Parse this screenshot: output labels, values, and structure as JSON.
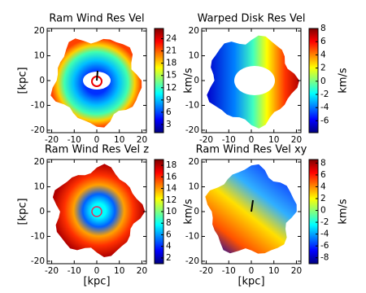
{
  "chart_data": [
    {
      "type": "heatmap",
      "title": "Ram Wind Res Vel",
      "ylabel": "[kpc]",
      "xlim": [
        -22,
        22
      ],
      "ylim": [
        -21,
        21
      ],
      "xticks": [
        -20,
        -10,
        0,
        10,
        20
      ],
      "yticks": [
        -20,
        -10,
        0,
        10,
        20
      ],
      "colorbar_label": "km/s",
      "clim": [
        1,
        26.5
      ],
      "cticks": [
        3,
        6,
        9,
        12,
        15,
        18,
        21,
        24
      ]
    },
    {
      "type": "heatmap",
      "title": "Warped Disk Res Vel",
      "xlim": [
        -22,
        22
      ],
      "ylim": [
        -21,
        21
      ],
      "xticks": [
        -20,
        -10,
        0,
        10,
        20
      ],
      "yticks": [
        -20,
        -10,
        0,
        10,
        20
      ],
      "colorbar_label": "km/s",
      "clim": [
        -7.8,
        8
      ],
      "cticks": [
        -6,
        -4,
        -2,
        0,
        2,
        4,
        6,
        8
      ]
    },
    {
      "type": "heatmap",
      "title": "Ram Wind Res Vel z",
      "xlabel": "[kpc]",
      "ylabel": "[kpc]",
      "xlim": [
        -22,
        22
      ],
      "ylim": [
        -21,
        21
      ],
      "xticks": [
        -20,
        -10,
        0,
        10,
        20
      ],
      "yticks": [
        -20,
        -10,
        0,
        10,
        20
      ],
      "colorbar_label": "km/s",
      "clim": [
        1,
        19
      ],
      "cticks": [
        2,
        4,
        6,
        8,
        10,
        12,
        14,
        16,
        18
      ]
    },
    {
      "type": "heatmap",
      "title": "Ram Wind Res Vel xy",
      "xlabel": "[kpc]",
      "xlim": [
        -22,
        22
      ],
      "ylim": [
        -21,
        21
      ],
      "xticks": [
        -20,
        -10,
        0,
        10,
        20
      ],
      "yticks": [
        -20,
        -10,
        0,
        10,
        20
      ],
      "colorbar_label": "km/s",
      "clim": [
        -9,
        8.6
      ],
      "cticks": [
        -8,
        -6,
        -4,
        -2,
        0,
        2,
        4,
        6,
        8
      ]
    }
  ]
}
